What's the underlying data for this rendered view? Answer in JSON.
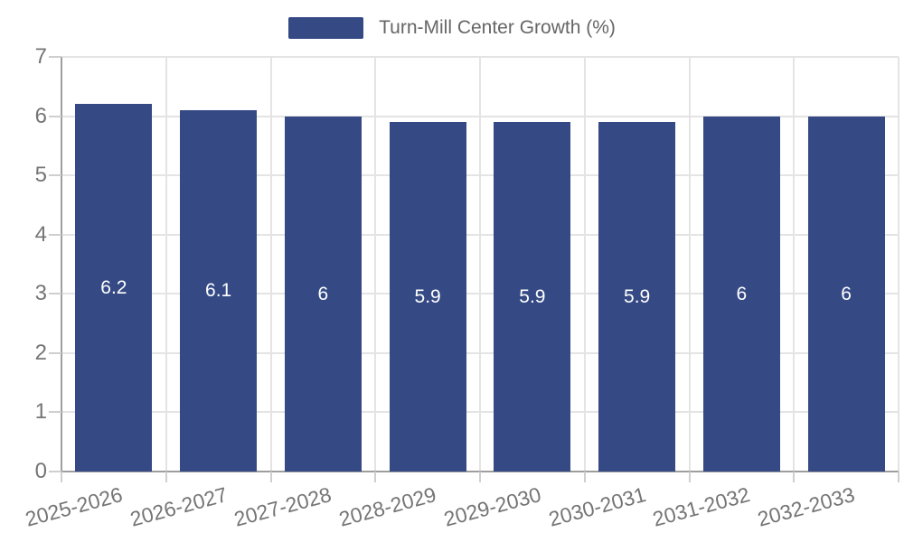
{
  "legend": {
    "label": "Turn-Mill Center Growth (%)"
  },
  "chart_data": {
    "type": "bar",
    "title": "Turn-Mill Center Growth (%)",
    "categories": [
      "2025-2026",
      "2026-2027",
      "2027-2028",
      "2028-2029",
      "2029-2030",
      "2030-2031",
      "2031-2032",
      "2032-2033"
    ],
    "values": [
      6.2,
      6.1,
      6,
      5.9,
      5.9,
      5.9,
      6,
      6
    ],
    "value_labels": [
      "6.2",
      "6.1",
      "6",
      "5.9",
      "5.9",
      "5.9",
      "6",
      "6"
    ],
    "xlabel": "",
    "ylabel": "",
    "ylim": [
      0,
      7
    ],
    "yticks": [
      0,
      1,
      2,
      3,
      4,
      5,
      6,
      7
    ],
    "grid": true,
    "legend_position": "top-center",
    "x_label_rotation_deg": -15,
    "colors": {
      "bar": "#354a85",
      "value_label": "#ffffff",
      "grid": "#e4e4e4",
      "axis": "#9e9e9e",
      "tick": "#cfcfcf",
      "axis_text": "#757575",
      "legend_text": "#666666",
      "background": "#ffffff"
    }
  }
}
